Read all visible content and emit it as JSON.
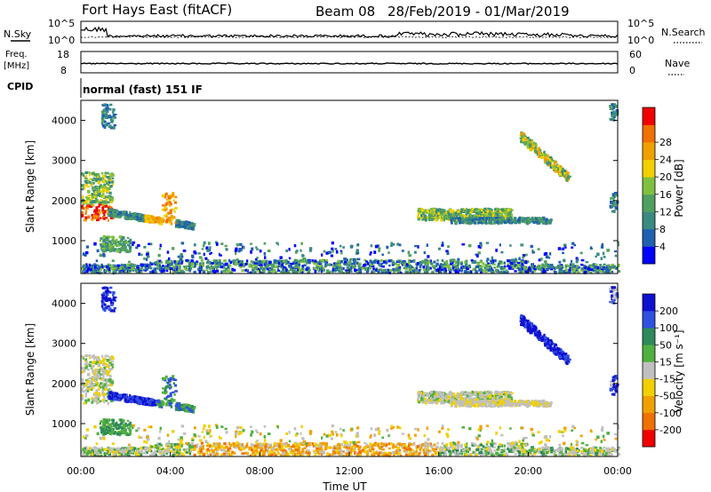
{
  "header": {
    "station": "Fort Hays East (fitACF)",
    "beam": "Beam 08",
    "dates": "28/Feb/2019 - 01/Mar/2019"
  },
  "sky_panel": {
    "left_label": "N.Sky",
    "right_label": "N.Search",
    "left_ticks": [
      "10^5",
      "10^0"
    ],
    "right_ticks": [
      "10^5",
      "10^0"
    ]
  },
  "freq_panel": {
    "left_label_1": "Freq.",
    "left_label_2": "[MHz]",
    "right_label": "Nave",
    "left_ticks": [
      "18",
      "8"
    ],
    "right_ticks": [
      "60",
      "0"
    ]
  },
  "cpid": {
    "label": "CPID",
    "text": "normal (fast) 151 IF"
  },
  "chart_data": [
    {
      "type": "heatmap",
      "name": "power",
      "ylabel": "Slant Range [km]",
      "ylim": [
        180,
        4500
      ],
      "yticks": [
        1000,
        2000,
        3000,
        4000
      ],
      "colorbar_label": "Power [dB]",
      "colorbar_ticks": [
        4,
        8,
        12,
        16,
        20,
        24,
        28
      ],
      "colorbar_range": [
        0,
        32
      ],
      "colors": [
        "#0000ff",
        "#2060b0",
        "#3a8a80",
        "#50a060",
        "#80c040",
        "#f0d000",
        "#f0a000",
        "#f07000",
        "#f00000"
      ]
    },
    {
      "type": "heatmap",
      "name": "velocity",
      "xlabel": "Time UT",
      "ylabel": "Slant Range [km]",
      "ylim": [
        180,
        4500
      ],
      "yticks": [
        1000,
        2000,
        3000,
        4000
      ],
      "xticks": [
        "00:00",
        "04:00",
        "08:00",
        "12:00",
        "16:00",
        "20:00",
        "00:00"
      ],
      "colorbar_label": "Velocity [m s⁻¹]",
      "colorbar_ticks": [
        200,
        100,
        50,
        15,
        -15,
        -50,
        -100,
        -200
      ],
      "colors": [
        "#1010d0",
        "#3050e0",
        "#2e8a5a",
        "#50b040",
        "#c0c0c0",
        "#f0d000",
        "#f0a000",
        "#f07000",
        "#f00000"
      ]
    }
  ]
}
